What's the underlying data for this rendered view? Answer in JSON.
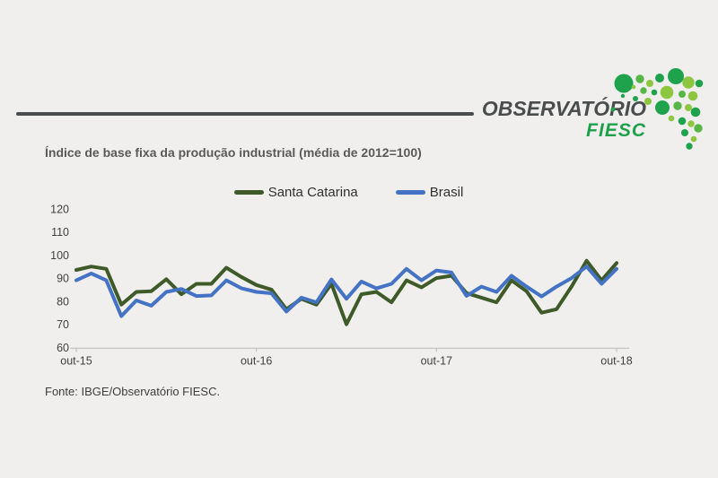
{
  "header": {
    "brand_top": "OBSERVATÓRIO",
    "brand_bottom": "FIESC",
    "brand_top_color": "#4a4d4e",
    "brand_green": "#1ea04b",
    "rule_color": "#4a4d4e"
  },
  "logo": {
    "name": "fiesc-dots-logo",
    "palette": {
      "dark": "#1fa24c",
      "light": "#8dc63f",
      "mid": "#58b647"
    }
  },
  "title": "Índice de base fixa da produção industrial (média de 2012=100)",
  "source": "Fonte: IBGE/Observatório FIESC.",
  "chart_data": {
    "type": "line",
    "title": "Índice de base fixa da produção industrial (média de 2012=100)",
    "xlabel": "",
    "ylabel": "",
    "ylim": [
      60,
      120
    ],
    "y_ticks": [
      60,
      70,
      80,
      90,
      100,
      110,
      120
    ],
    "n_points": 37,
    "x_tick_labels": [
      "out-15",
      "out-16",
      "out-17",
      "out-18"
    ],
    "x_tick_indices": [
      0,
      12,
      24,
      36
    ],
    "grid": false,
    "legend_position": "top-center",
    "axis_color": "#bfbfbf",
    "label_color": "#404040",
    "series": [
      {
        "name": "Santa Catarina",
        "color": "#3d5a28",
        "values": [
          93.5,
          95,
          94,
          78.5,
          84,
          84.3,
          89.5,
          83,
          87.5,
          87.5,
          94.5,
          90.5,
          87,
          85,
          76.5,
          81,
          78.5,
          87.5,
          70,
          83,
          84,
          79.5,
          89,
          86,
          90,
          91,
          83.5,
          81.5,
          79.5,
          89,
          84.3,
          75,
          76.5,
          86.3,
          97.5,
          89,
          96.5
        ]
      },
      {
        "name": "Brasil",
        "color": "#4472c4",
        "values": [
          89,
          92,
          89,
          73.5,
          80.3,
          78,
          84,
          85.3,
          82.2,
          82.5,
          89,
          85.6,
          84,
          83.4,
          75.5,
          81.5,
          79.5,
          89.4,
          81,
          88.5,
          85.5,
          87.5,
          94,
          89,
          93.3,
          92.4,
          82.3,
          86.3,
          84,
          91,
          86.3,
          82,
          86.3,
          90,
          95,
          87.5,
          94
        ]
      }
    ]
  }
}
